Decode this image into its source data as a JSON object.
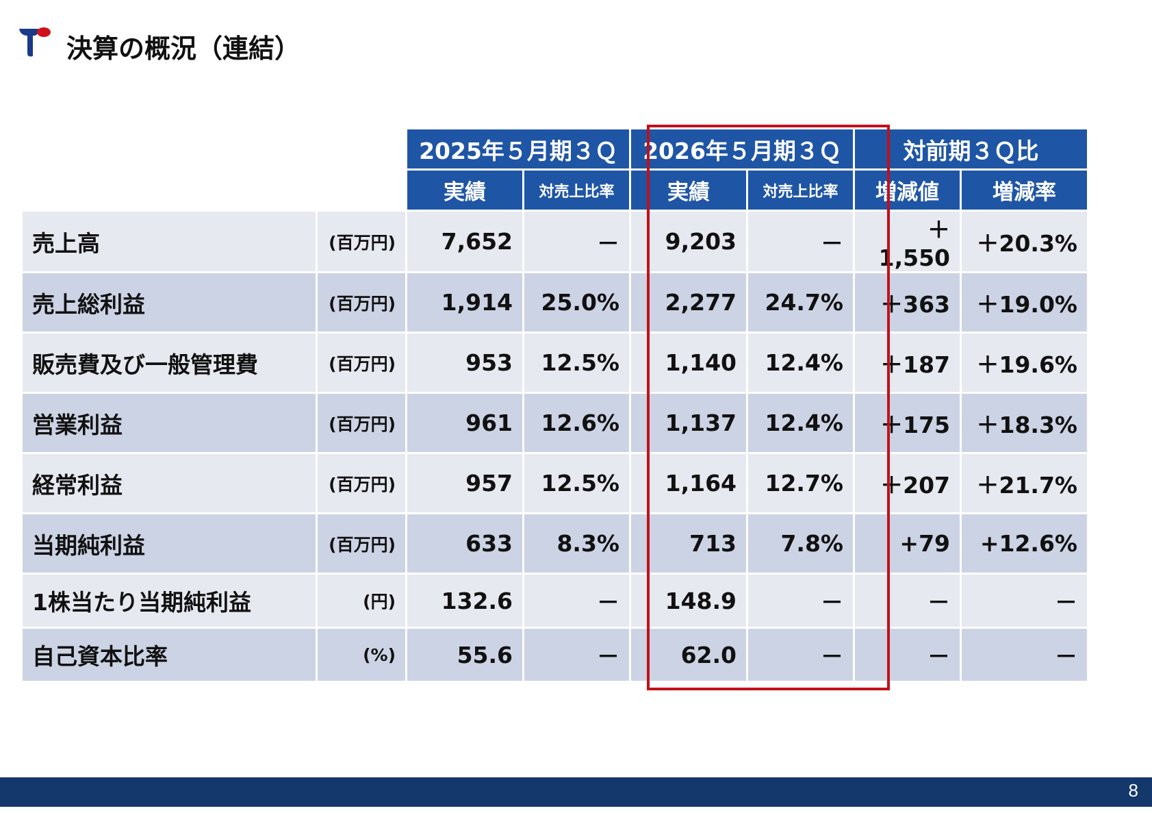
{
  "header": {
    "title": "決算の概況（連結）",
    "logo_colors": [
      "#1a3a8a",
      "#d0121b"
    ]
  },
  "table": {
    "groups": [
      "2025年５月期３Ｑ",
      "2026年５月期３Ｑ",
      "対前期３Ｑ比"
    ],
    "subheaders": [
      "実績",
      "対売上比率",
      "実績",
      "対売上比率",
      "増減値",
      "増減率"
    ],
    "rows": [
      {
        "label": "売上高",
        "unit": "(百万円)",
        "values": [
          "7,652",
          "－",
          "9,203",
          "－",
          "＋1,550",
          "＋20.3%"
        ]
      },
      {
        "label": "売上総利益",
        "unit": "(百万円)",
        "values": [
          "1,914",
          "25.0%",
          "2,277",
          "24.7%",
          "＋363",
          "＋19.0%"
        ]
      },
      {
        "label": "販売費及び一般管理費",
        "unit": "(百万円)",
        "values": [
          "953",
          "12.5%",
          "1,140",
          "12.4%",
          "＋187",
          "＋19.6%"
        ]
      },
      {
        "label": "営業利益",
        "unit": "(百万円)",
        "values": [
          "961",
          "12.6%",
          "1,137",
          "12.4%",
          "＋175",
          "＋18.3%"
        ]
      },
      {
        "label": "経常利益",
        "unit": "(百万円)",
        "values": [
          "957",
          "12.5%",
          "1,164",
          "12.7%",
          "＋207",
          "＋21.7%"
        ]
      },
      {
        "label": "当期純利益",
        "unit": "(百万円)",
        "values": [
          "633",
          "8.3%",
          "713",
          "7.8%",
          "+79",
          "+12.6%"
        ]
      },
      {
        "label": "1株当たり当期純利益",
        "unit": "(円)",
        "values": [
          "132.6",
          "－",
          "148.9",
          "－",
          "－",
          "－"
        ]
      },
      {
        "label": "自己資本比率",
        "unit": "(%)",
        "values": [
          "55.6",
          "－",
          "62.0",
          "－",
          "－",
          "－"
        ]
      }
    ]
  },
  "colors": {
    "header_blue": "#1f55a5",
    "highlight_red": "#c0101a",
    "footer": "#14386c"
  },
  "footer": {
    "page_number": "8"
  }
}
